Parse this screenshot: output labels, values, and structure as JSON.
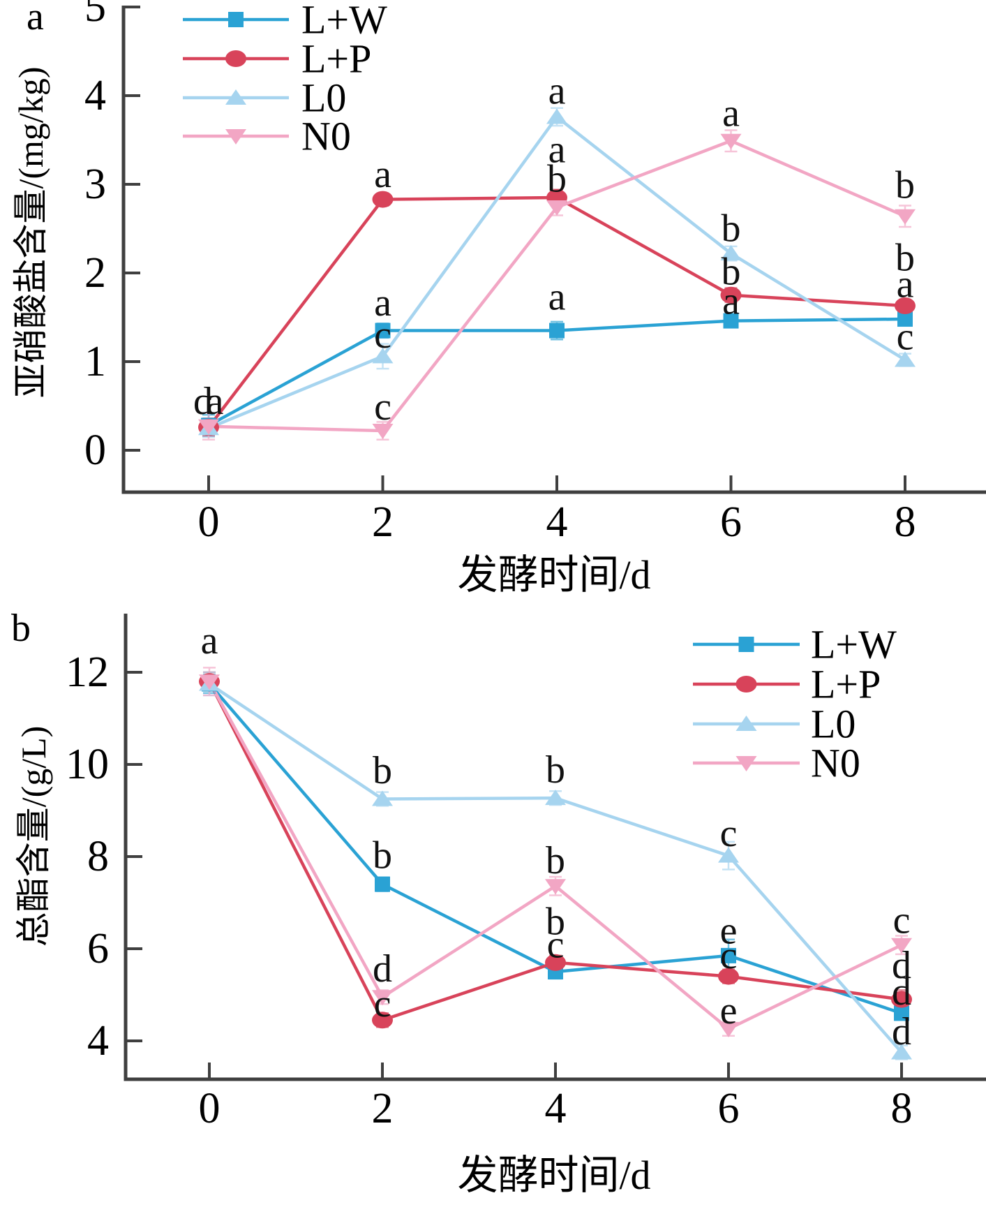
{
  "chart_data": [
    {
      "type": "line",
      "panel_letter": "a",
      "xlabel": "发酵时间/d",
      "ylabel": "亚硝酸盐含量/(mg/kg)",
      "x": [
        0,
        2,
        4,
        6,
        8
      ],
      "x_tick_labels": [
        "0",
        "2",
        "4",
        "6",
        "8"
      ],
      "y_ticks": [
        0,
        1,
        2,
        3,
        4,
        5
      ],
      "ylim": [
        -0.5,
        5.0
      ],
      "grid": false,
      "legend_position": "top-left",
      "series": [
        {
          "name": "L+W",
          "color": "#2AA2D4",
          "marker": "square",
          "values": [
            0.28,
            1.35,
            1.35,
            1.46,
            1.48
          ],
          "err": [
            0.12,
            0.08,
            0.1,
            0.07,
            0.07
          ]
        },
        {
          "name": "L+P",
          "color": "#D8435A",
          "marker": "circle",
          "values": [
            0.26,
            2.83,
            2.85,
            1.75,
            1.63
          ],
          "err": [
            0.1,
            0.07,
            0.09,
            0.08,
            0.07
          ]
        },
        {
          "name": "L0",
          "color": "#A6D4EF",
          "marker": "triangle-up",
          "values": [
            0.25,
            1.06,
            3.76,
            2.22,
            1.02
          ],
          "err": [
            0.1,
            0.14,
            0.1,
            0.08,
            0.07
          ]
        },
        {
          "name": "N0",
          "color": "#F2A6C4",
          "marker": "triangle-down",
          "values": [
            0.27,
            0.22,
            2.74,
            3.49,
            2.64
          ],
          "err": [
            0.15,
            0.1,
            0.09,
            0.12,
            0.12
          ]
        }
      ],
      "significance_letters": [
        {
          "day": 0,
          "value": 0.55,
          "text": "d",
          "dx": -8
        },
        {
          "day": 0,
          "value": 0.55,
          "text": "a",
          "dx": 9
        },
        {
          "day": 2,
          "value": 3.11,
          "text": "a",
          "dx": 0
        },
        {
          "day": 2,
          "value": 1.66,
          "text": "a",
          "dx": 0
        },
        {
          "day": 2,
          "value": 1.3,
          "text": "c",
          "dx": 0
        },
        {
          "day": 2,
          "value": 0.49,
          "text": "c",
          "dx": 0
        },
        {
          "day": 4,
          "value": 4.05,
          "text": "a",
          "dx": 0
        },
        {
          "day": 4,
          "value": 3.39,
          "text": "a",
          "dx": 0
        },
        {
          "day": 4,
          "value": 3.06,
          "text": "b",
          "dx": 0
        },
        {
          "day": 4,
          "value": 1.73,
          "text": "a",
          "dx": 0
        },
        {
          "day": 6,
          "value": 3.8,
          "text": "a",
          "dx": 0
        },
        {
          "day": 6,
          "value": 2.5,
          "text": "b",
          "dx": 0
        },
        {
          "day": 6,
          "value": 2.01,
          "text": "b",
          "dx": 0
        },
        {
          "day": 6,
          "value": 1.68,
          "text": "a",
          "dx": 0
        },
        {
          "day": 8,
          "value": 2.99,
          "text": "b",
          "dx": 0
        },
        {
          "day": 8,
          "value": 2.17,
          "text": "b",
          "dx": 0
        },
        {
          "day": 8,
          "value": 1.87,
          "text": "a",
          "dx": 0
        },
        {
          "day": 8,
          "value": 1.28,
          "text": "c",
          "dx": 0
        }
      ]
    },
    {
      "type": "line",
      "panel_letter": "b",
      "xlabel": "发酵时间/d",
      "ylabel": "总酯含量/(g/L)",
      "x": [
        0,
        2,
        4,
        6,
        8
      ],
      "x_tick_labels": [
        "0",
        "2",
        "4",
        "6",
        "8"
      ],
      "y_ticks": [
        4,
        6,
        8,
        10,
        12
      ],
      "ylim": [
        3.2,
        13.3
      ],
      "grid": false,
      "legend_position": "top-right",
      "series": [
        {
          "name": "L+W",
          "color": "#2AA2D4",
          "marker": "square",
          "values": [
            11.75,
            7.4,
            5.5,
            5.85,
            4.6
          ],
          "err": [
            0.2,
            0.15,
            0.15,
            0.35,
            0.15
          ]
        },
        {
          "name": "L+P",
          "color": "#D8435A",
          "marker": "circle",
          "values": [
            11.8,
            4.45,
            5.7,
            5.4,
            4.9
          ],
          "err": [
            0.2,
            0.15,
            0.15,
            0.15,
            0.2
          ]
        },
        {
          "name": "L0",
          "color": "#A6D4EF",
          "marker": "triangle-up",
          "values": [
            11.75,
            9.25,
            9.27,
            8.02,
            3.75
          ],
          "err": [
            0.25,
            0.15,
            0.15,
            0.3,
            0.15
          ]
        },
        {
          "name": "N0",
          "color": "#F2A6C4",
          "marker": "triangle-down",
          "values": [
            11.8,
            4.95,
            7.36,
            4.26,
            6.08
          ],
          "err": [
            0.3,
            0.15,
            0.2,
            0.15,
            0.2
          ]
        }
      ],
      "significance_letters": [
        {
          "day": 0,
          "value": 12.68,
          "text": "a",
          "dx": 0
        },
        {
          "day": 2,
          "value": 9.86,
          "text": "b",
          "dx": 0
        },
        {
          "day": 2,
          "value": 8.02,
          "text": "b",
          "dx": 0
        },
        {
          "day": 2,
          "value": 5.56,
          "text": "d",
          "dx": 0
        },
        {
          "day": 2,
          "value": 4.8,
          "text": "c",
          "dx": 0
        },
        {
          "day": 4,
          "value": 9.88,
          "text": "b",
          "dx": 0
        },
        {
          "day": 4,
          "value": 7.91,
          "text": "b",
          "dx": 0
        },
        {
          "day": 4,
          "value": 6.58,
          "text": "b",
          "dx": 0
        },
        {
          "day": 4,
          "value": 6.08,
          "text": "c",
          "dx": 0
        },
        {
          "day": 6,
          "value": 8.5,
          "text": "c",
          "dx": 0
        },
        {
          "day": 6,
          "value": 6.39,
          "text": "e",
          "dx": 0
        },
        {
          "day": 6,
          "value": 5.85,
          "text": "c",
          "dx": 0
        },
        {
          "day": 6,
          "value": 4.65,
          "text": "e",
          "dx": 0
        },
        {
          "day": 8,
          "value": 6.61,
          "text": "c",
          "dx": 0
        },
        {
          "day": 8,
          "value": 5.64,
          "text": "d",
          "dx": 0
        },
        {
          "day": 8,
          "value": 5.06,
          "text": "d",
          "dx": 0
        },
        {
          "day": 8,
          "value": 4.2,
          "text": "d",
          "dx": 0
        }
      ]
    }
  ],
  "style": {
    "axis_color": "#3F3F3F",
    "text_color": "#000000",
    "letter_color": "#111111"
  }
}
